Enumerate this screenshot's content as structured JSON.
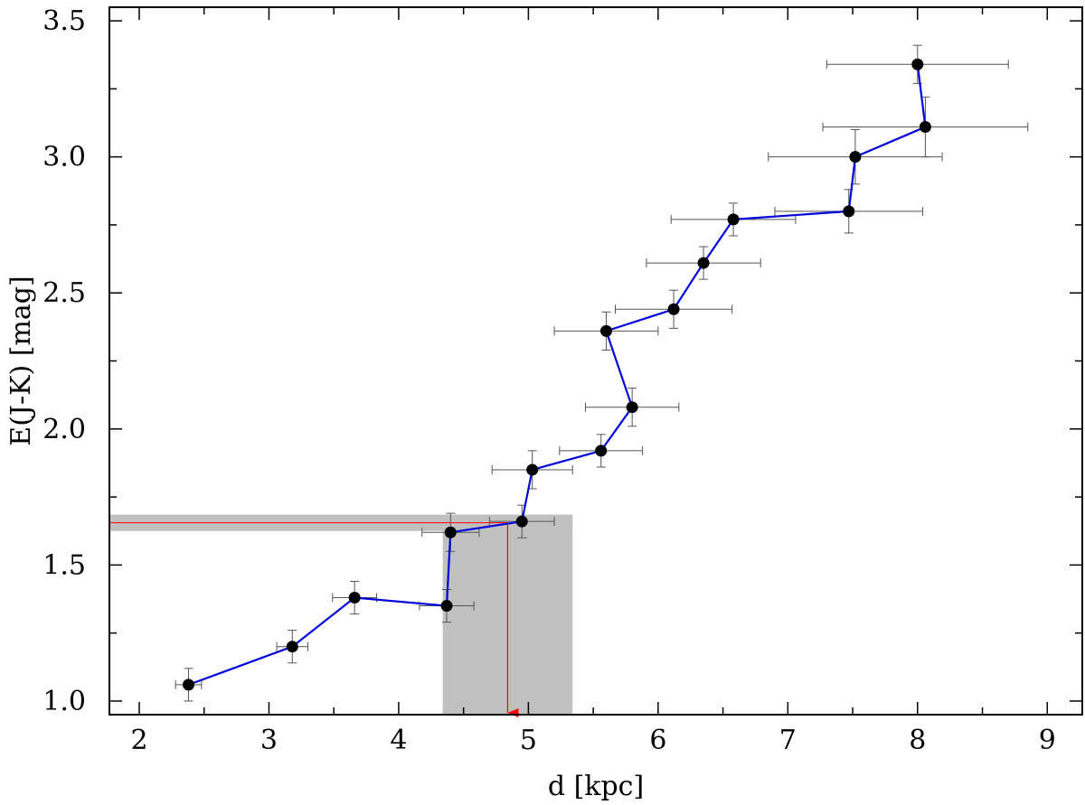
{
  "chart_data": {
    "type": "scatter",
    "title": "",
    "xlabel": "d [kpc]",
    "ylabel": "E(J-K) [mag]",
    "xlim": [
      1.77,
      9.27
    ],
    "ylim": [
      0.95,
      3.55
    ],
    "x_ticks": [
      2,
      3,
      4,
      5,
      6,
      7,
      8,
      9
    ],
    "x_tick_labels": [
      "2",
      "3",
      "4",
      "5",
      "6",
      "7",
      "8",
      "9"
    ],
    "y_ticks": [
      1.0,
      1.5,
      2.0,
      2.5,
      3.0,
      3.5
    ],
    "y_tick_labels": [
      "1.0",
      "1.5",
      "2.0",
      "2.5",
      "3.0",
      "3.5"
    ],
    "grid": false,
    "colors": {
      "line": "#0000dd",
      "marker": "#000000",
      "errorbar": "#555555",
      "shade": "#c0c0c0",
      "highlight": "#ff0000"
    },
    "series": [
      {
        "x": [
          2.38,
          3.18,
          3.66,
          4.37,
          4.4,
          4.95,
          5.03,
          5.56,
          5.8,
          5.6,
          6.12,
          6.35,
          6.58,
          7.47,
          7.52,
          8.06,
          8.0
        ],
        "y": [
          1.06,
          1.2,
          1.38,
          1.35,
          1.62,
          1.66,
          1.85,
          1.92,
          2.08,
          2.36,
          2.44,
          2.61,
          2.77,
          2.8,
          3.0,
          3.11,
          3.34
        ],
        "xerr": [
          0.1,
          0.12,
          0.17,
          0.21,
          0.22,
          0.25,
          0.31,
          0.32,
          0.36,
          0.4,
          0.45,
          0.44,
          0.48,
          0.57,
          0.67,
          0.79,
          0.7
        ],
        "yerr": [
          0.06,
          0.06,
          0.06,
          0.06,
          0.07,
          0.06,
          0.07,
          0.06,
          0.07,
          0.07,
          0.07,
          0.06,
          0.06,
          0.08,
          0.1,
          0.11,
          0.07
        ]
      }
    ],
    "highlight": {
      "y_value": 1.655,
      "y_band": [
        1.625,
        1.685
      ],
      "x_value": 4.84,
      "x_band": [
        4.34,
        5.34
      ]
    }
  }
}
